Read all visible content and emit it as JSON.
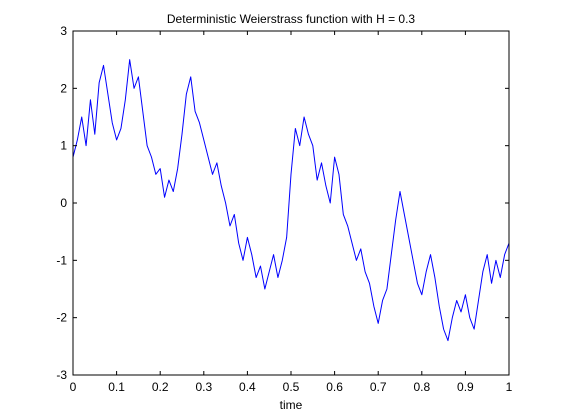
{
  "chart_data": {
    "type": "line",
    "title": "Deterministic Weierstrass function with H = 0.3",
    "xlabel": "time",
    "ylabel": "",
    "xlim": [
      0,
      1
    ],
    "ylim": [
      -3,
      3
    ],
    "x_ticks": [
      0,
      0.1,
      0.2,
      0.3,
      0.4,
      0.5,
      0.6,
      0.7,
      0.8,
      0.9,
      1
    ],
    "x_tick_labels": [
      "0",
      "0.1",
      "0.2",
      "0.3",
      "0.4",
      "0.5",
      "0.6",
      "0.7",
      "0.8",
      "0.9",
      "1"
    ],
    "y_ticks": [
      -3,
      -2,
      -1,
      0,
      1,
      2,
      3
    ],
    "y_tick_labels": [
      "-3",
      "-2",
      "-1",
      "0",
      "1",
      "2",
      "3"
    ],
    "grid": false,
    "legend": "none",
    "series": [
      {
        "color": "#0000ff",
        "x": [
          0,
          0.01,
          0.02,
          0.03,
          0.04,
          0.05,
          0.06,
          0.07,
          0.08,
          0.09,
          0.1,
          0.11,
          0.12,
          0.13,
          0.14,
          0.15,
          0.16,
          0.17,
          0.18,
          0.19,
          0.2,
          0.21,
          0.22,
          0.23,
          0.24,
          0.25,
          0.26,
          0.27,
          0.28,
          0.29,
          0.3,
          0.31,
          0.32,
          0.33,
          0.34,
          0.35,
          0.36,
          0.37,
          0.38,
          0.39,
          0.4,
          0.41,
          0.42,
          0.43,
          0.44,
          0.45,
          0.46,
          0.47,
          0.48,
          0.49,
          0.5,
          0.51,
          0.52,
          0.53,
          0.54,
          0.55,
          0.56,
          0.57,
          0.58,
          0.59,
          0.6,
          0.61,
          0.62,
          0.63,
          0.64,
          0.65,
          0.66,
          0.67,
          0.68,
          0.69,
          0.7,
          0.71,
          0.72,
          0.73,
          0.74,
          0.75,
          0.76,
          0.77,
          0.78,
          0.79,
          0.8,
          0.81,
          0.82,
          0.83,
          0.84,
          0.85,
          0.86,
          0.87,
          0.88,
          0.89,
          0.9,
          0.91,
          0.92,
          0.93,
          0.94,
          0.95,
          0.96,
          0.97,
          0.98,
          0.99,
          1
        ],
        "y": [
          0.8,
          1.1,
          1.5,
          1.0,
          1.8,
          1.2,
          2.1,
          2.4,
          1.9,
          1.4,
          1.1,
          1.3,
          1.8,
          2.5,
          2.0,
          2.2,
          1.6,
          1.0,
          0.8,
          0.5,
          0.6,
          0.1,
          0.4,
          0.2,
          0.6,
          1.2,
          1.9,
          2.2,
          1.6,
          1.4,
          1.1,
          0.8,
          0.5,
          0.7,
          0.3,
          0.0,
          -0.4,
          -0.2,
          -0.7,
          -1.0,
          -0.6,
          -0.9,
          -1.3,
          -1.1,
          -1.5,
          -1.2,
          -0.9,
          -1.3,
          -1.0,
          -0.6,
          0.5,
          1.3,
          1.0,
          1.5,
          1.2,
          1.0,
          0.4,
          0.7,
          0.3,
          0.0,
          0.8,
          0.5,
          -0.2,
          -0.4,
          -0.7,
          -1.0,
          -0.8,
          -1.2,
          -1.4,
          -1.8,
          -2.1,
          -1.7,
          -1.5,
          -0.9,
          -0.3,
          0.2,
          -0.2,
          -0.6,
          -1.0,
          -1.4,
          -1.6,
          -1.2,
          -0.9,
          -1.3,
          -1.8,
          -2.2,
          -2.4,
          -2.0,
          -1.7,
          -1.9,
          -1.6,
          -2.0,
          -2.2,
          -1.7,
          -1.2,
          -0.9,
          -1.4,
          -1.0,
          -1.3,
          -0.9,
          -0.7
        ]
      }
    ]
  }
}
